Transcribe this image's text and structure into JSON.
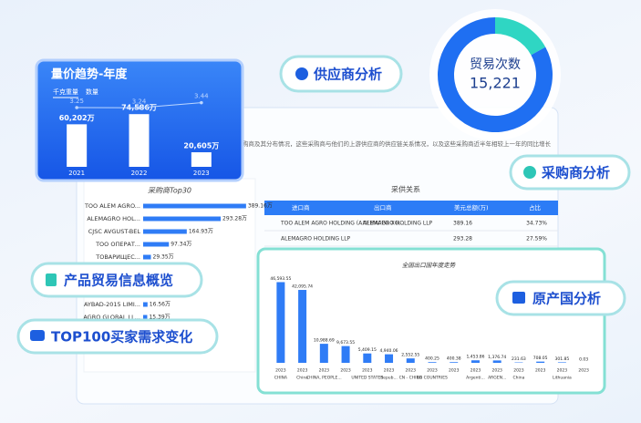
{
  "badges": {
    "supplier": "供应商分析",
    "buyer": "采购商分析",
    "origin": "原产国分析",
    "product": "产品贸易信息概览",
    "top100": "TOP100买家需求变化"
  },
  "intro_text": "购商及其分布情况，这些采购商与他们的上游供应商的供应链关系情况，以及这些采购商近半年相较上一年的同比增长",
  "table": {
    "title": "采供关系",
    "columns": [
      "进口商",
      "出口商",
      "美元总额(万)",
      "占比"
    ],
    "rows": [
      [
        "TOO ALEM AGRO HOLDING (АЛЕМАГРО ХО...",
        "ALEMAGRO HOLDING LLP",
        "389.16",
        "34.73%"
      ],
      [
        "ALEMAGRO HOLDING LLP",
        "",
        "293.28",
        "27.59%"
      ]
    ]
  },
  "chart_data": [
    {
      "type": "combo",
      "title": "量价趋势-年度",
      "categories": [
        "2021",
        "2022",
        "2023"
      ],
      "ylim": [
        0,
        80000
      ],
      "y2lim": [
        3,
        4
      ],
      "series": [
        {
          "name": "千克重量",
          "type": "bar",
          "color": "#ffffff",
          "values": [
            60202,
            74586,
            20605
          ],
          "value_labels": [
            "60,202万",
            "74,586万",
            "20,605万"
          ]
        },
        {
          "name": "数量",
          "type": "line",
          "axis": "y2",
          "color": "#bcd6ff",
          "values": [
            3.25,
            3.24,
            3.44
          ]
        }
      ]
    },
    {
      "type": "pie",
      "center_label": "贸易次数",
      "total": {
        "value": 15221,
        "label": "15,221"
      },
      "values": [
        17,
        83
      ],
      "colors": [
        "#2fd6c3",
        "#1f6ff2"
      ]
    },
    {
      "type": "hbar",
      "title": "采购商Top30",
      "color": "#2f7cf6",
      "xlim": [
        0,
        400
      ],
      "categories": [
        "TOO ALEM AGRO...",
        "ALEMAGRO HOL...",
        "CJSC AVGUST-BEL",
        "TOO ОПЕРАТ...",
        "ТОВАРИЩЕС...",
        "AYBAD-2015 LIMI...",
        "AGRO GLOBAL LL..."
      ],
      "values": [
        389.16,
        293.28,
        164.93,
        97.34,
        29.35,
        16.56,
        15.39
      ],
      "value_labels": [
        "389.16万",
        "293.28万",
        "164.93万",
        "97.34万",
        "29.35万",
        "16.56万",
        "15.39万"
      ]
    },
    {
      "type": "bar",
      "title": "全国出口国年度走势",
      "color": "#2f7cf6",
      "ylim": [
        0,
        50000
      ],
      "categories": [
        "2023",
        "2023",
        "2023",
        "2023",
        "2023",
        "2023",
        "2023",
        "2023",
        "2023",
        "2023",
        "2023",
        "2023",
        "2023",
        "2023",
        "2023"
      ],
      "groups": [
        "CHINA",
        "China",
        "CHINA, PEOPLE...",
        null,
        "UNITED STATES",
        "Repub...",
        "CN - CHINA",
        "EU COUNTRIES",
        null,
        "Argenti...",
        "ARGEN...",
        "China",
        null,
        "Lithuania",
        null
      ],
      "values": [
        46593.55,
        42095.74,
        10988.69,
        9673.55,
        5409.15,
        4940.06,
        2552.55,
        400.25,
        400.38,
        1453.86,
        1376.74,
        231.63,
        708.05,
        301.85,
        0.03
      ],
      "value_labels": [
        "46,593.55",
        "42,095.74",
        "10,988.69",
        "9,673.55",
        "5,409.15",
        "4,940.06",
        "2,552.55",
        "400.25",
        "400.38",
        "1,453.86",
        "1,376.74",
        "231.63",
        "708.05",
        "301.85",
        "0.03"
      ]
    }
  ]
}
